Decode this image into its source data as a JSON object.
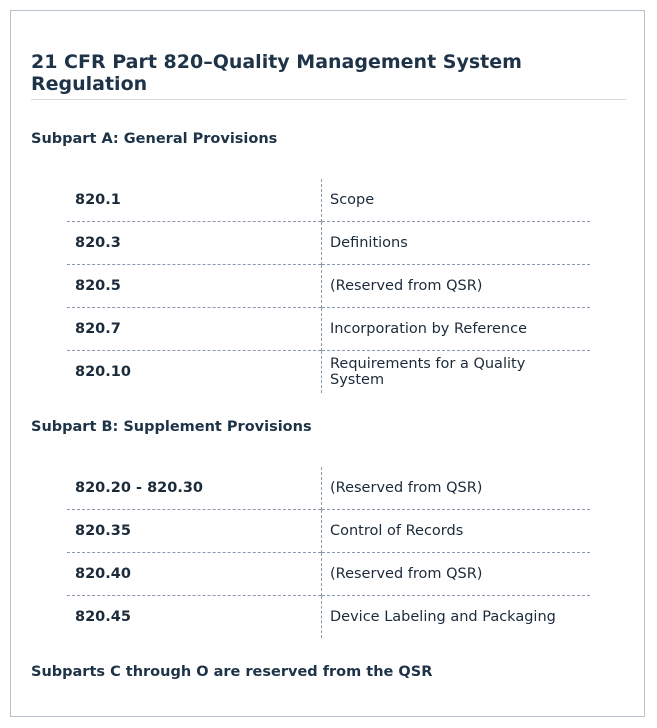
{
  "title": "21 CFR Part 820–Quality Management System Regulation",
  "subparts": [
    {
      "heading": "Subpart A: General Provisions",
      "rows": [
        [
          "820.1",
          "Scope"
        ],
        [
          "820.3",
          "Definitions"
        ],
        [
          "820.5",
          "(Reserved from QSR)"
        ],
        [
          "820.7",
          "Incorporation by Reference"
        ],
        [
          "820.10",
          "Requirements for a Quality System"
        ]
      ]
    },
    {
      "heading": "Subpart B: Supplement Provisions",
      "rows": [
        [
          "820.20 - 820.30",
          "(Reserved from QSR)"
        ],
        [
          "820.35",
          "Control of Records"
        ],
        [
          "820.40",
          "(Reserved from QSR)"
        ],
        [
          "820.45",
          "Device Labeling and Packaging"
        ]
      ]
    }
  ],
  "footer": "Subparts C through O are reserved from the QSR"
}
